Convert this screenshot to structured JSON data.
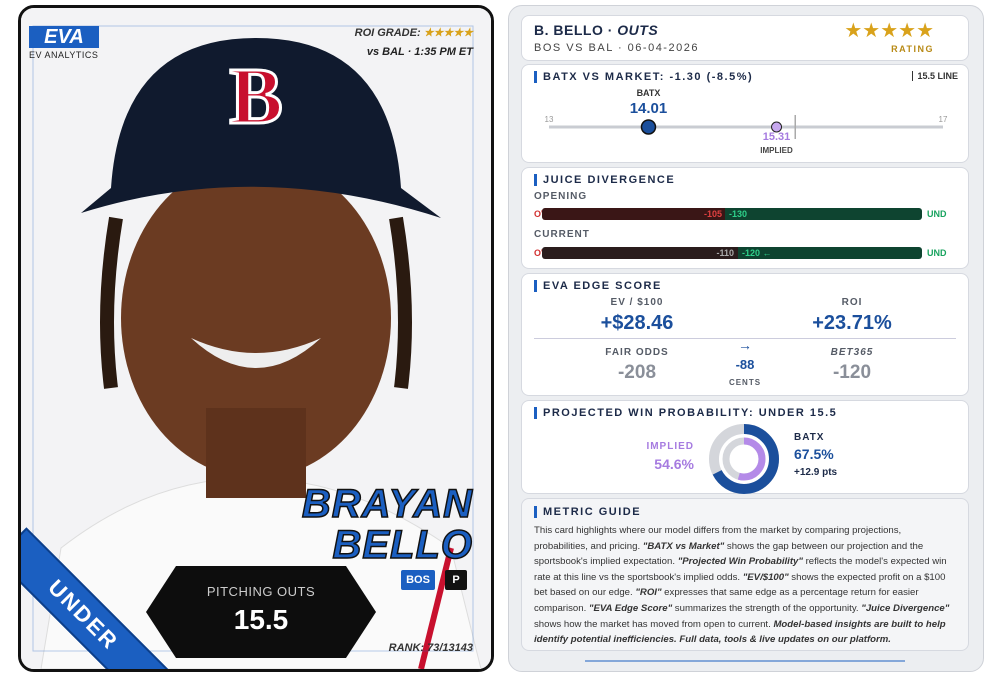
{
  "player_card": {
    "brand": "EVA",
    "brand_sub": "EV ANALYTICS",
    "roi_grade_label": "ROI GRADE:",
    "roi_grade_stars": "★★★★★",
    "matchup": "vs BAL · 1:35 PM ET",
    "first_name": "BRAYAN",
    "last_name": "BELLO",
    "team": "BOS",
    "position": "P",
    "prop_label": "PITCHING OUTS",
    "prop_line": "15.5",
    "side": "UNDER",
    "rank": "RANK: 73/13143"
  },
  "header": {
    "player": "B. BELLO · ",
    "market": "OUTS",
    "game": "BOS VS BAL · 06-04-2026",
    "stars": "★★★★★",
    "rating": "RATING"
  },
  "batx_vs_market": {
    "title": "BATX VS MARKET: -1.30 (-8.5%)",
    "line": {
      "value": 15.5,
      "label": "15.5 LINE"
    },
    "min": 13,
    "max": 17,
    "batx_label": "BATX",
    "batx": 14.01,
    "implied": 15.31,
    "implied_label": "IMPLIED"
  },
  "juice_divergence": {
    "title": "JUICE DIVERGENCE",
    "opening": {
      "label": "OPENING",
      "over": "OVR",
      "over_odds": "-105",
      "under_odds": "-130",
      "under": "UND"
    },
    "current": {
      "label": "CURRENT",
      "over": "OVR",
      "over_odds": "-110",
      "under_odds": "-120 ←",
      "under": "UND"
    }
  },
  "edge_score": {
    "title": "EVA EDGE SCORE",
    "ev_label": "EV / $100",
    "ev": "+$28.46",
    "roi_label": "ROI",
    "roi": "+23.71%",
    "fair_label": "FAIR ODDS",
    "fair": "-208",
    "arrow": "→",
    "cents": "-88",
    "cents_label": "CENTS",
    "book_label": "BET365",
    "book": "-120"
  },
  "win_probability": {
    "title": "PROJECTED WIN PROBABILITY: UNDER 15.5",
    "implied_label": "IMPLIED",
    "batx_label": "BATX",
    "values": [
      54.6,
      67.5
    ],
    "value_labels": [
      "54.6%",
      "67.5%"
    ],
    "delta": "+12.9 pts"
  },
  "metric_guide": {
    "title": "METRIC GUIDE",
    "body": [
      "This card highlights where our model differs from the market by comparing projections, probabilities, and pricing. ",
      "\"BATX vs Market\"",
      " shows the gap between our projection and the sportsbook's implied expectation. ",
      "\"Projected Win Probability\"",
      " reflects the model's expected win rate at this line vs the sportsbook's implied odds. ",
      "\"EV/$100\"",
      " shows the expected profit on a $100 bet based on our edge. ",
      "\"ROI\"",
      " expresses that same edge as a percentage return for easier comparison. ",
      "\"EVA Edge Score\"",
      " summarizes the strength of the opportunity. ",
      "\"Juice Divergence\"",
      " shows how the market has moved from open to current. ",
      "Model-based insights are built to help identify potential inefficiencies. Full data, tools & live updates on our platform."
    ]
  }
}
